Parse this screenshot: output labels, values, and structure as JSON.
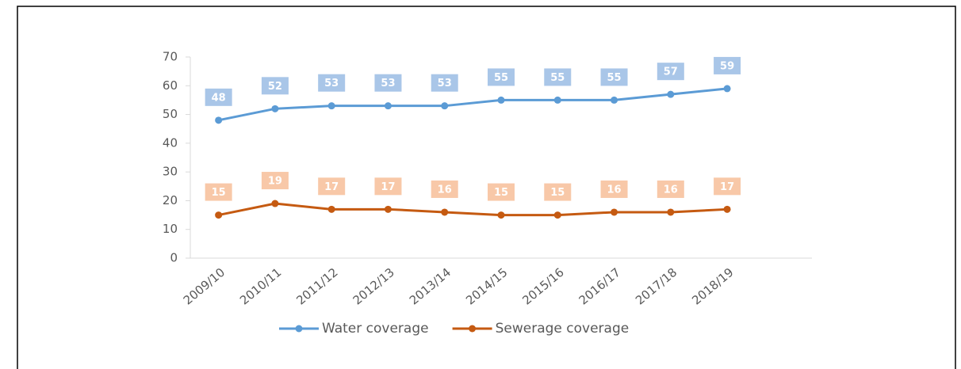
{
  "chart_data": {
    "type": "line",
    "categories": [
      "2009/10",
      "2010/11",
      "2011/12",
      "2012/13",
      "2013/14",
      "2014/15",
      "2015/16",
      "2016/17",
      "2017/18",
      "2018/19"
    ],
    "series": [
      {
        "name": "Water coverage",
        "color": "#5b9bd5",
        "label_color": "#a9c6e8",
        "values": [
          48,
          52,
          53,
          53,
          53,
          55,
          55,
          55,
          57,
          59
        ]
      },
      {
        "name": "Sewerage coverage",
        "color": "#c55a11",
        "label_color": "#f8c8a8",
        "values": [
          15,
          19,
          17,
          17,
          16,
          15,
          15,
          16,
          16,
          17
        ]
      }
    ],
    "ylim": [
      0,
      70
    ],
    "yticks": [
      0,
      10,
      20,
      30,
      40,
      50,
      60,
      70
    ],
    "grid": false,
    "legend": "bottom"
  }
}
